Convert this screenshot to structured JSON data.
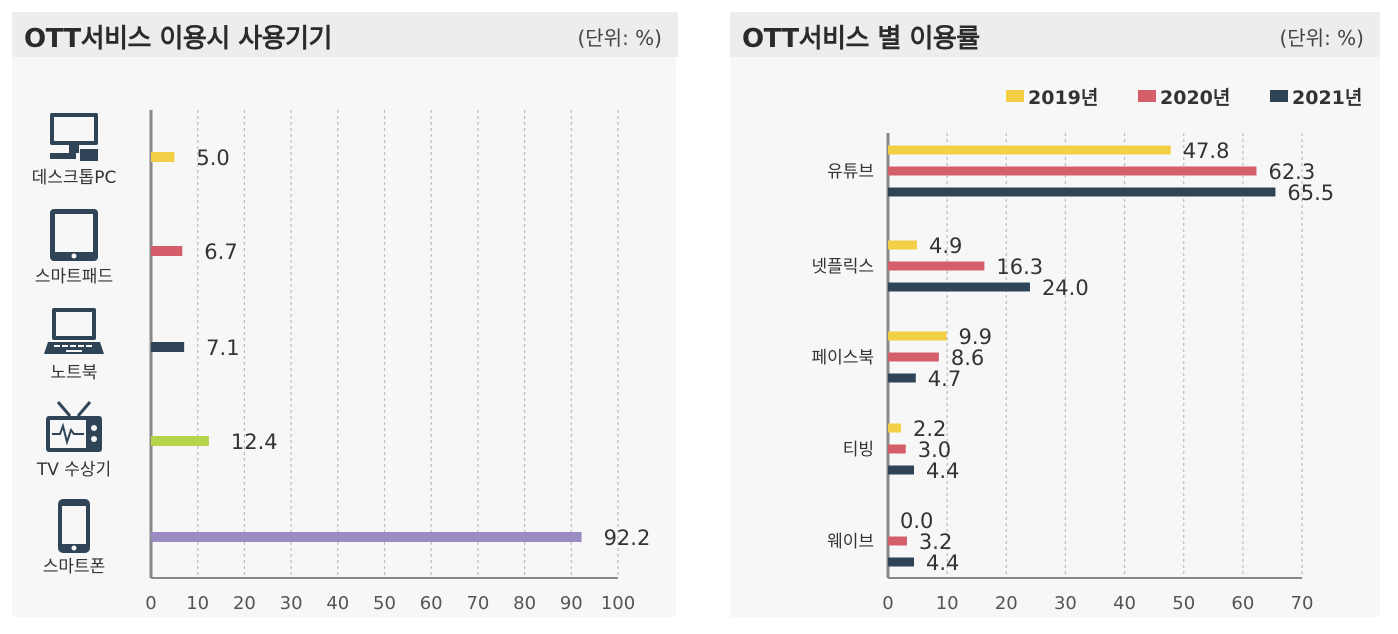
{
  "chart_data": [
    {
      "type": "bar",
      "orientation": "horizontal",
      "title": "OTT서비스 이용시 사용기기",
      "unit_label": "(단위: %)",
      "categories": [
        "데스크톱PC",
        "스마트패드",
        "노트북",
        "TV 수상기",
        "스마트폰"
      ],
      "category_icons": [
        "desktop-icon",
        "tablet-icon",
        "laptop-icon",
        "tv-icon",
        "smartphone-icon"
      ],
      "values": [
        5.0,
        6.7,
        7.1,
        12.4,
        92.2
      ],
      "value_labels": [
        "5.0",
        "6.7",
        "7.1",
        "12.4",
        "92.2"
      ],
      "colors": [
        "#f2cf45",
        "#d45e6a",
        "#2f4457",
        "#b5d44a",
        "#9b8cc4"
      ],
      "xlim": [
        0,
        100
      ],
      "xticks": [
        "0",
        "10",
        "20",
        "30",
        "40",
        "50",
        "60",
        "70",
        "80",
        "90",
        "100"
      ],
      "grid": true
    },
    {
      "type": "bar",
      "orientation": "horizontal",
      "title": "OTT서비스 별 이용률",
      "unit_label": "(단위: %)",
      "categories": [
        "유튜브",
        "넷플릭스",
        "페이스북",
        "티빙",
        "웨이브"
      ],
      "series": [
        {
          "name": "2019년",
          "color": "#f2cf45",
          "values": [
            47.8,
            4.9,
            9.9,
            2.2,
            0.0
          ],
          "labels": [
            "47.8",
            "4.9",
            "9.9",
            "2.2",
            "0.0"
          ]
        },
        {
          "name": "2020년",
          "color": "#d45e6a",
          "values": [
            62.3,
            16.3,
            8.6,
            3.0,
            3.2
          ],
          "labels": [
            "62.3",
            "16.3",
            "8.6",
            "3.0",
            "3.2"
          ]
        },
        {
          "name": "2021년",
          "color": "#2f4457",
          "values": [
            65.5,
            24.0,
            4.7,
            4.4,
            4.4
          ],
          "labels": [
            "65.5",
            "24.0",
            "4.7",
            "4.4",
            "4.4"
          ]
        }
      ],
      "legend_position": "top-right",
      "xlim": [
        0,
        70
      ],
      "xticks": [
        "0",
        "10",
        "20",
        "30",
        "40",
        "50",
        "60",
        "70"
      ],
      "grid": true
    }
  ]
}
